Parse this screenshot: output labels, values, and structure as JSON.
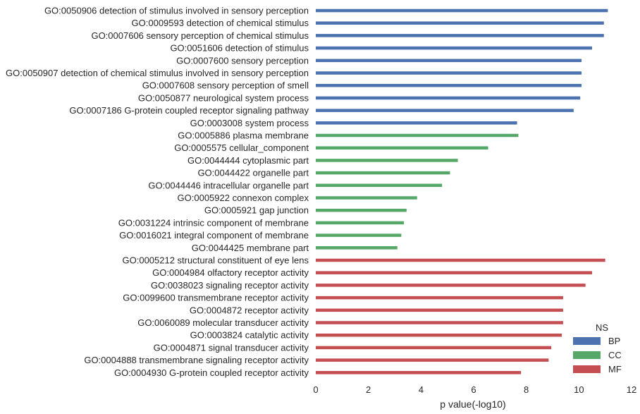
{
  "chart_data": {
    "type": "bar",
    "orientation": "horizontal",
    "xlabel": "p value(-log10)",
    "ylabel": "",
    "title": "",
    "xlim": [
      0,
      12
    ],
    "xticks": [
      "0",
      "2",
      "4",
      "6",
      "8",
      "10",
      "12"
    ],
    "grid": false,
    "legend": {
      "title": "NS",
      "placement": "bottom-right",
      "entries": [
        {
          "name": "BP",
          "color": "#4c72b0"
        },
        {
          "name": "CC",
          "color": "#55a868"
        },
        {
          "name": "MF",
          "color": "#c44e52"
        }
      ]
    },
    "bars": [
      {
        "label": "GO:0050906 detection of stimulus involved in sensory perception",
        "value": 11.1,
        "ns": "BP"
      },
      {
        "label": "GO:0009593 detection of chemical stimulus",
        "value": 10.95,
        "ns": "BP"
      },
      {
        "label": "GO:0007606 sensory perception of chemical stimulus",
        "value": 10.95,
        "ns": "BP"
      },
      {
        "label": "GO:0051606 detection of stimulus",
        "value": 10.5,
        "ns": "BP"
      },
      {
        "label": "GO:0007600 sensory perception",
        "value": 10.1,
        "ns": "BP"
      },
      {
        "label": "GO:0050907 detection of chemical stimulus involved in sensory perception",
        "value": 10.1,
        "ns": "BP"
      },
      {
        "label": "GO:0007608 sensory perception of smell",
        "value": 10.1,
        "ns": "BP"
      },
      {
        "label": "GO:0050877 neurological system process",
        "value": 10.05,
        "ns": "BP"
      },
      {
        "label": "GO:0007186 G-protein coupled receptor signaling pathway",
        "value": 9.8,
        "ns": "BP"
      },
      {
        "label": "GO:0003008 system process",
        "value": 7.65,
        "ns": "BP"
      },
      {
        "label": "GO:0005886 plasma membrane",
        "value": 7.7,
        "ns": "CC"
      },
      {
        "label": "GO:0005575 cellular_component",
        "value": 6.55,
        "ns": "CC"
      },
      {
        "label": "GO:0044444 cytoplasmic part",
        "value": 5.4,
        "ns": "CC"
      },
      {
        "label": "GO:0044422 organelle part",
        "value": 5.1,
        "ns": "CC"
      },
      {
        "label": "GO:0044446 intracellular organelle part",
        "value": 4.8,
        "ns": "CC"
      },
      {
        "label": "GO:0005922 connexon complex",
        "value": 3.85,
        "ns": "CC"
      },
      {
        "label": "GO:0005921 gap junction",
        "value": 3.45,
        "ns": "CC"
      },
      {
        "label": "GO:0031224 intrinsic component of membrane",
        "value": 3.35,
        "ns": "CC"
      },
      {
        "label": "GO:0016021 integral component of membrane",
        "value": 3.25,
        "ns": "CC"
      },
      {
        "label": "GO:0044425 membrane part",
        "value": 3.1,
        "ns": "CC"
      },
      {
        "label": "GO:0005212 structural constituent of eye lens",
        "value": 11.0,
        "ns": "MF"
      },
      {
        "label": "GO:0004984 olfactory receptor activity",
        "value": 10.5,
        "ns": "MF"
      },
      {
        "label": "GO:0038023 signaling receptor activity",
        "value": 10.25,
        "ns": "MF"
      },
      {
        "label": "GO:0099600 transmembrane receptor activity",
        "value": 9.4,
        "ns": "MF"
      },
      {
        "label": "GO:0004872 receptor activity",
        "value": 9.4,
        "ns": "MF"
      },
      {
        "label": "GO:0060089 molecular transducer activity",
        "value": 9.4,
        "ns": "MF"
      },
      {
        "label": "GO:0003824 catalytic activity",
        "value": 9.35,
        "ns": "MF"
      },
      {
        "label": "GO:0004871 signal transducer activity",
        "value": 8.95,
        "ns": "MF"
      },
      {
        "label": "GO:0004888 transmembrane signaling receptor activity",
        "value": 8.85,
        "ns": "MF"
      },
      {
        "label": "GO:0004930 G-protein coupled receptor activity",
        "value": 7.8,
        "ns": "MF"
      }
    ]
  }
}
